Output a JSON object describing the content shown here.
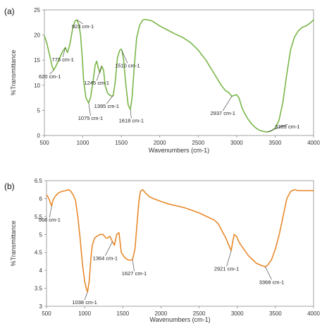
{
  "chart_data": [
    {
      "type": "line",
      "panel_label": "(a)",
      "xlabel": "Wavenumbers (cm-1)",
      "ylabel": "%Transmittance",
      "xlim": [
        500,
        4000
      ],
      "ylim": [
        0,
        25
      ],
      "xticks": [
        500,
        1000,
        1500,
        2000,
        2500,
        3000,
        3500,
        4000
      ],
      "yticks": [
        0,
        5,
        10,
        15,
        20,
        25
      ],
      "grid": false,
      "series": [
        {
          "color": "#7ab648",
          "x": [
            500,
            530,
            560,
            600,
            620,
            650,
            700,
            740,
            773,
            800,
            830,
            870,
            900,
            923,
            950,
            970,
            990,
            1010,
            1040,
            1075,
            1100,
            1130,
            1160,
            1180,
            1200,
            1220,
            1245,
            1270,
            1290,
            1320,
            1350,
            1380,
            1395,
            1420,
            1450,
            1480,
            1500,
            1510,
            1530,
            1560,
            1590,
            1618,
            1640,
            1670,
            1700,
            1740,
            1780,
            1820,
            1900,
            2000,
            2100,
            2200,
            2300,
            2400,
            2500,
            2600,
            2700,
            2800,
            2850,
            2900,
            2937,
            2970,
            3000,
            3030,
            3070,
            3100,
            3150,
            3200,
            3250,
            3300,
            3350,
            3399,
            3450,
            3500,
            3550,
            3600,
            3650,
            3700,
            3750,
            3800,
            3850,
            3900,
            3950,
            4000
          ],
          "y": [
            19.8,
            18.5,
            16.5,
            13.8,
            13.0,
            13.8,
            15.5,
            16.8,
            17.5,
            16.5,
            18.0,
            21.5,
            22.8,
            23.0,
            22.0,
            20.0,
            16.0,
            11.0,
            7.5,
            6.5,
            7.5,
            10.5,
            14.0,
            14.8,
            13.5,
            12.5,
            13.8,
            13.0,
            10.0,
            8.5,
            8.0,
            7.8,
            8.0,
            10.5,
            15.5,
            17.0,
            17.2,
            16.8,
            15.0,
            10.0,
            6.0,
            5.2,
            7.5,
            14.0,
            19.5,
            22.0,
            23.0,
            23.1,
            22.8,
            21.8,
            21.0,
            20.2,
            19.5,
            18.5,
            17.0,
            15.0,
            12.5,
            10.0,
            9.0,
            8.5,
            7.8,
            8.0,
            8.1,
            7.5,
            5.5,
            4.5,
            3.2,
            2.2,
            1.5,
            1.0,
            0.8,
            0.7,
            0.9,
            1.5,
            3.0,
            6.5,
            12.0,
            17.0,
            19.5,
            20.8,
            21.5,
            21.8,
            22.3,
            23.0
          ]
        }
      ],
      "annotations": [
        {
          "text": "620 cm-1",
          "x": 620,
          "y": 13.0,
          "lx": 570,
          "ly": 11.8
        },
        {
          "text": "773 cm-1",
          "x": 773,
          "y": 17.5,
          "lx": 740,
          "ly": 15.2
        },
        {
          "text": "923 cm-1",
          "x": 923,
          "y": 23.0,
          "lx": 1000,
          "ly": 21.8
        },
        {
          "text": "1075 cm-1",
          "x": 1075,
          "y": 6.5,
          "lx": 1100,
          "ly": 3.5
        },
        {
          "text": "1245 cm-1",
          "x": 1245,
          "y": 13.8,
          "lx": 1180,
          "ly": 10.5
        },
        {
          "text": "1395 cm-1",
          "x": 1395,
          "y": 8.0,
          "lx": 1310,
          "ly": 5.9
        },
        {
          "text": "1510 cm-1",
          "x": 1510,
          "y": 16.8,
          "lx": 1580,
          "ly": 14.0
        },
        {
          "text": "1618 cm-1",
          "x": 1618,
          "y": 5.2,
          "lx": 1630,
          "ly": 3.0
        },
        {
          "text": "2937 cm-1",
          "x": 2937,
          "y": 7.8,
          "lx": 2820,
          "ly": 4.5
        },
        {
          "text": "3399 cm-1",
          "x": 3399,
          "y": 0.7,
          "lx": 3660,
          "ly": 1.8
        }
      ]
    },
    {
      "type": "line",
      "panel_label": "(b)",
      "xlabel": "Wavenumbers (cm-1)",
      "ylabel": "%Transmittance",
      "xlim": [
        500,
        4000
      ],
      "ylim": [
        3,
        6.5
      ],
      "xticks": [
        500,
        1000,
        1500,
        2000,
        2500,
        3000,
        3500,
        4000
      ],
      "yticks": [
        3,
        3.5,
        4,
        4.5,
        5,
        5.5,
        6,
        6.5
      ],
      "grid": false,
      "series": [
        {
          "color": "#e8892b",
          "x": [
            500,
            520,
            540,
            555,
            568,
            585,
            610,
            650,
            700,
            750,
            790,
            820,
            850,
            880,
            910,
            940,
            970,
            1000,
            1020,
            1038,
            1060,
            1080,
            1100,
            1130,
            1160,
            1200,
            1240,
            1280,
            1300,
            1330,
            1364,
            1390,
            1420,
            1450,
            1480,
            1510,
            1530,
            1560,
            1590,
            1627,
            1660,
            1690,
            1710,
            1730,
            1760,
            1800,
            1850,
            1900,
            2000,
            2100,
            2200,
            2300,
            2400,
            2500,
            2600,
            2700,
            2750,
            2800,
            2850,
            2880,
            2900,
            2921,
            2940,
            2960,
            2990,
            3020,
            3050,
            3100,
            3150,
            3200,
            3250,
            3300,
            3340,
            3368,
            3400,
            3450,
            3500,
            3550,
            3600,
            3650,
            3700,
            3750,
            3800,
            3900,
            4000
          ],
          "y": [
            6.1,
            6.05,
            5.95,
            5.85,
            5.8,
            5.95,
            6.05,
            6.15,
            6.2,
            6.22,
            6.25,
            6.2,
            6.1,
            5.95,
            5.5,
            4.9,
            4.2,
            3.7,
            3.5,
            3.4,
            3.7,
            4.3,
            4.7,
            4.9,
            4.95,
            5.0,
            5.0,
            4.9,
            4.9,
            4.95,
            4.8,
            4.7,
            5.0,
            5.05,
            4.5,
            4.4,
            4.35,
            4.3,
            4.28,
            4.3,
            4.6,
            5.4,
            5.9,
            6.2,
            6.25,
            6.15,
            6.05,
            6.0,
            5.92,
            5.85,
            5.8,
            5.75,
            5.68,
            5.6,
            5.5,
            5.4,
            5.3,
            5.1,
            4.9,
            4.75,
            4.65,
            4.55,
            4.8,
            5.0,
            4.95,
            4.8,
            4.7,
            4.55,
            4.4,
            4.3,
            4.2,
            4.15,
            4.12,
            4.1,
            4.15,
            4.3,
            4.6,
            5.0,
            5.5,
            6.0,
            6.2,
            6.25,
            6.22,
            6.22,
            6.22
          ]
        }
      ],
      "annotations": [
        {
          "text": "568 cm-1",
          "x": 568,
          "y": 5.8,
          "lx": 540,
          "ly": 5.42
        },
        {
          "text": "1038 cm-1",
          "x": 1038,
          "y": 3.4,
          "lx": 1000,
          "ly": 3.12
        },
        {
          "text": "1364 cm-1",
          "x": 1364,
          "y": 4.8,
          "lx": 1270,
          "ly": 4.35
        },
        {
          "text": "1627 cm-1",
          "x": 1627,
          "y": 4.3,
          "lx": 1650,
          "ly": 3.92
        },
        {
          "text": "2921 cm-1",
          "x": 2921,
          "y": 4.55,
          "lx": 2860,
          "ly": 4.05
        },
        {
          "text": "3368 cm-1",
          "x": 3368,
          "y": 4.1,
          "lx": 3450,
          "ly": 3.68
        }
      ]
    }
  ]
}
